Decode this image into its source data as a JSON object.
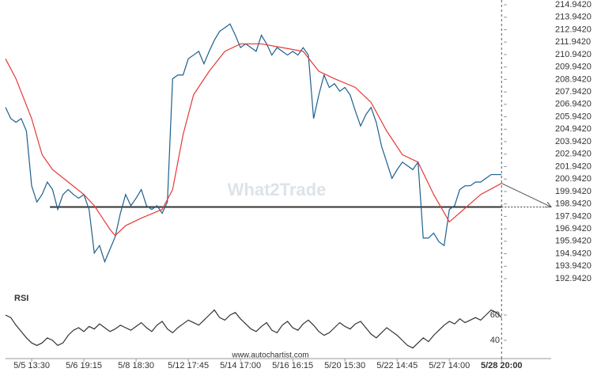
{
  "chart_data": [
    {
      "type": "line",
      "watermark": "What2Trade",
      "xlim": [
        -5,
        99.5
      ],
      "ylim": [
        192.942,
        214.942
      ],
      "yticks": [
        {
          "value": 214.942,
          "label": "214.9420"
        },
        {
          "value": 213.942,
          "label": "213.9420"
        },
        {
          "value": 212.942,
          "label": "212.9420"
        },
        {
          "value": 211.942,
          "label": "211.9420"
        },
        {
          "value": 210.942,
          "label": "210.9420"
        },
        {
          "value": 209.942,
          "label": "209.9420"
        },
        {
          "value": 208.942,
          "label": "208.9420"
        },
        {
          "value": 207.942,
          "label": "207.9420"
        },
        {
          "value": 206.942,
          "label": "206.9420"
        },
        {
          "value": 205.942,
          "label": "205.9420"
        },
        {
          "value": 204.942,
          "label": "204.9420"
        },
        {
          "value": 203.942,
          "label": "203.9420"
        },
        {
          "value": 202.942,
          "label": "202.9420"
        },
        {
          "value": 201.942,
          "label": "201.9420"
        },
        {
          "value": 200.942,
          "label": "200.9420"
        },
        {
          "value": 199.942,
          "label": "199.9420"
        },
        {
          "value": 198.942,
          "label": "198.9420"
        },
        {
          "value": 197.942,
          "label": "197.9420"
        },
        {
          "value": 196.942,
          "label": "196.9420"
        },
        {
          "value": 195.942,
          "label": "195.9420"
        },
        {
          "value": 194.942,
          "label": "194.9420"
        },
        {
          "value": 193.942,
          "label": "193.9420"
        },
        {
          "value": 192.942,
          "label": "192.9420"
        }
      ],
      "series": [
        {
          "color": "#1d5f8f",
          "x": [
            -5,
            -4,
            -3,
            -2,
            -1,
            0,
            1,
            2,
            3,
            4,
            5,
            6,
            7,
            8,
            9,
            10,
            11,
            12,
            13,
            14,
            15,
            16,
            17,
            18,
            19,
            20,
            21,
            22,
            23,
            24,
            25,
            26,
            27,
            28,
            29,
            30,
            31,
            32,
            33,
            34,
            35,
            36,
            37,
            38,
            39,
            40,
            41,
            42,
            43,
            44,
            45,
            46,
            47,
            48,
            49,
            50,
            51,
            52,
            53,
            54,
            55,
            56,
            57,
            58,
            59,
            60,
            61,
            62,
            63,
            64,
            65,
            66,
            67,
            68,
            69,
            70,
            71,
            72,
            73,
            74,
            75,
            76,
            77,
            78,
            79,
            80,
            81,
            82,
            83,
            84,
            85,
            86,
            87,
            88,
            89,
            90
          ],
          "values": [
            206.7,
            205.8,
            205.5,
            205.8,
            204.8,
            200.4,
            199.1,
            199.7,
            200.7,
            200.1,
            198.5,
            199.7,
            200.1,
            199.7,
            199.4,
            199.7,
            198.5,
            195.0,
            195.6,
            194.3,
            195.3,
            196.3,
            198.2,
            199.7,
            198.8,
            199.4,
            200.1,
            198.8,
            198.5,
            198.8,
            198.2,
            199.1,
            209.0,
            209.3,
            209.3,
            210.6,
            210.9,
            211.2,
            210.2,
            211.2,
            212.1,
            212.8,
            213.1,
            213.4,
            212.5,
            211.5,
            211.8,
            211.5,
            211.2,
            212.5,
            211.8,
            210.9,
            211.5,
            211.2,
            210.9,
            211.2,
            210.9,
            211.5,
            210.9,
            205.8,
            207.7,
            209.3,
            208.3,
            208.6,
            208.0,
            208.3,
            207.7,
            206.4,
            205.2,
            206.1,
            206.7,
            205.5,
            203.6,
            202.3,
            201.0,
            201.7,
            202.3,
            202.0,
            201.7,
            202.3,
            196.2,
            196.2,
            196.6,
            195.9,
            195.6,
            198.5,
            198.8,
            200.1,
            200.4,
            200.4,
            200.7,
            200.7,
            201.0,
            201.3,
            201.3,
            201.3
          ]
        },
        {
          "color": "#e53935",
          "x": [
            -5,
            -3,
            0,
            2,
            4,
            7,
            10,
            12,
            15,
            16,
            18,
            21,
            25,
            27,
            29,
            31,
            34,
            37,
            40,
            44,
            48,
            52,
            55,
            58,
            62,
            65,
            68,
            71,
            74,
            77,
            80,
            83,
            86,
            90
          ],
          "values": [
            210.6,
            209.0,
            205.8,
            202.9,
            201.7,
            200.7,
            199.7,
            198.8,
            196.9,
            196.4,
            197.2,
            197.8,
            198.5,
            200.1,
            204.5,
            207.7,
            209.6,
            211.2,
            211.8,
            211.8,
            211.5,
            211.2,
            209.6,
            209.0,
            208.3,
            207.1,
            204.8,
            202.9,
            202.3,
            199.7,
            197.5,
            198.6,
            199.7,
            200.6
          ]
        }
      ],
      "support": {
        "value": 198.7,
        "x": [
          3.5,
          90,
          99.5
        ],
        "color": "#333333"
      },
      "forecast": {
        "x": [
          90,
          99.5
        ],
        "values": [
          200.6,
          198.7
        ],
        "color": "#555555"
      }
    },
    {
      "type": "line",
      "title": "RSI",
      "source": "www.autochartist.com",
      "xlim": [
        -5,
        99.5
      ],
      "ylim": [
        30,
        70
      ],
      "yticks": [
        60,
        40
      ],
      "xticks": [
        {
          "value": 0,
          "label": "5/5 13:30"
        },
        {
          "value": 10,
          "label": "5/6 19:15"
        },
        {
          "value": 20,
          "label": "5/8 18:30"
        },
        {
          "value": 30,
          "label": "5/12 17:45"
        },
        {
          "value": 40,
          "label": "5/14 17:00"
        },
        {
          "value": 50,
          "label": "5/16 16:15"
        },
        {
          "value": 60,
          "label": "5/20 15:30"
        },
        {
          "value": 70,
          "label": "5/22 14:45"
        },
        {
          "value": 80,
          "label": "5/27 14:00"
        },
        {
          "value": 90,
          "label": "5/28 20:00"
        }
      ],
      "series": [
        {
          "color": "#333333",
          "x": [
            -5,
            -4,
            -3,
            -2,
            -1,
            0,
            1,
            2,
            3,
            4,
            5,
            6,
            7,
            8,
            9,
            10,
            11,
            12,
            13,
            14,
            15,
            16,
            17,
            18,
            19,
            20,
            21,
            22,
            23,
            24,
            25,
            26,
            27,
            28,
            29,
            30,
            31,
            32,
            33,
            34,
            35,
            36,
            37,
            38,
            39,
            40,
            41,
            42,
            43,
            44,
            45,
            46,
            47,
            48,
            49,
            50,
            51,
            52,
            53,
            54,
            55,
            56,
            57,
            58,
            59,
            60,
            61,
            62,
            63,
            64,
            65,
            66,
            67,
            68,
            69,
            70,
            71,
            72,
            73,
            74,
            75,
            76,
            77,
            78,
            79,
            80,
            81,
            82,
            83,
            84,
            85,
            86,
            87,
            88,
            89,
            90
          ],
          "values": [
            60,
            58,
            52,
            47,
            42,
            38,
            36,
            38,
            42,
            40,
            36,
            38,
            44,
            48,
            50,
            47,
            51,
            49,
            53,
            50,
            47,
            49,
            52,
            50,
            48,
            51,
            54,
            50,
            47,
            52,
            55,
            49,
            46,
            50,
            53,
            56,
            54,
            52,
            56,
            60,
            64,
            58,
            56,
            60,
            62,
            57,
            53,
            49,
            47,
            51,
            54,
            48,
            46,
            52,
            55,
            50,
            48,
            53,
            56,
            52,
            47,
            44,
            46,
            50,
            54,
            51,
            49,
            53,
            55,
            50,
            45,
            42,
            46,
            50,
            47,
            44,
            40,
            36,
            34,
            38,
            42,
            39,
            44,
            48,
            52,
            55,
            53,
            57,
            54,
            56,
            58,
            56,
            60,
            64,
            62,
            58
          ]
        }
      ]
    }
  ]
}
